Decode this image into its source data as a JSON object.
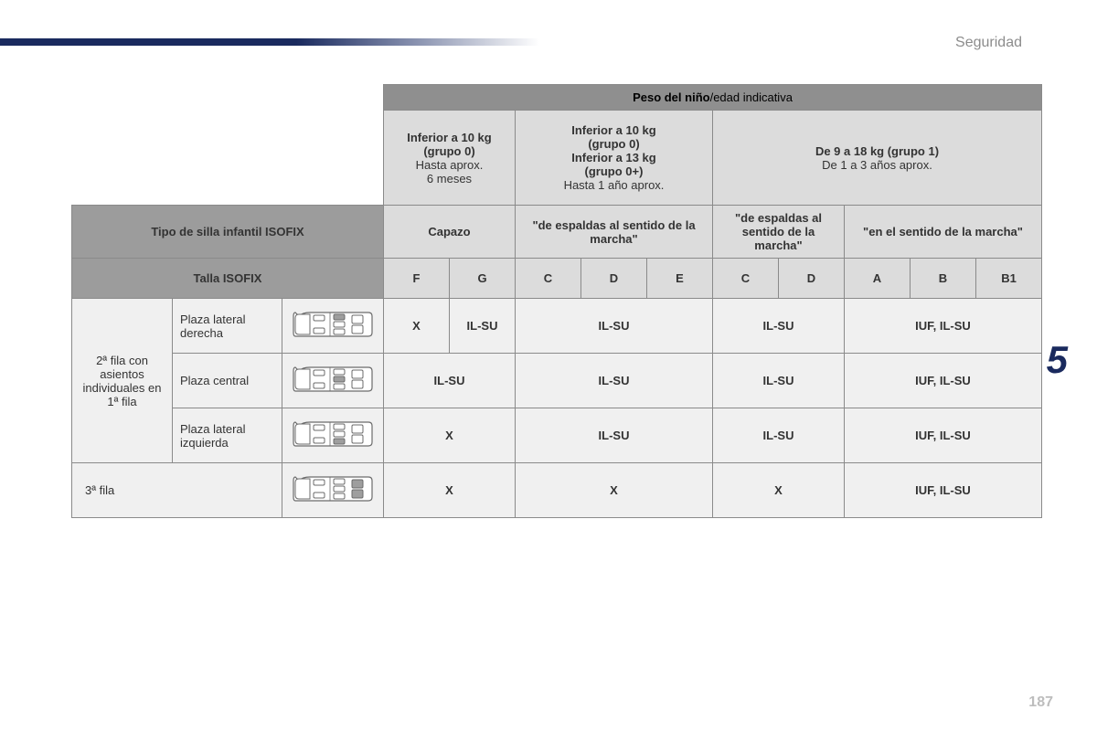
{
  "page": {
    "section_title": "Seguridad",
    "chapter_number": "5",
    "page_number": "187"
  },
  "table": {
    "super_header": {
      "bold": "Peso del niño",
      "light": "/edad indicativa"
    },
    "weight_groups": [
      {
        "line1": "Inferior a 10 kg",
        "line2": "(grupo 0)",
        "line3": "Hasta aprox.",
        "line4": "6 meses"
      },
      {
        "line1": "Inferior a 10 kg",
        "line2": "(grupo 0)",
        "line3": "Inferior a 13 kg",
        "line4": "(grupo 0+)",
        "line5": "Hasta 1 año aprox."
      },
      {
        "line1": "De 9 a 18 kg (grupo 1)",
        "line2": "De 1 a 3 años aprox."
      }
    ],
    "seat_type_label": "Tipo de silla infantil ISOFIX",
    "seat_types": {
      "capazo": "Capazo",
      "rear1": "\"de espaldas al sentido de la marcha\"",
      "rear2": "\"de espaldas al sentido de la marcha\"",
      "forward": "\"en el sentido de la marcha\""
    },
    "size_label": "Talla ISOFIX",
    "sizes": [
      "F",
      "G",
      "C",
      "D",
      "E",
      "C",
      "D",
      "A",
      "B",
      "B1"
    ],
    "row_group_label": "2ª fila con asientos individuales en 1ª fila",
    "rows": [
      {
        "label": "Plaza lateral derecha",
        "seat": "right",
        "vals": {
          "capazo_f": "X",
          "capazo_g": "IL-SU",
          "rear1": "IL-SU",
          "rear2": "IL-SU",
          "fwd": "IUF, IL-SU"
        }
      },
      {
        "label": "Plaza central",
        "seat": "center",
        "vals": {
          "capazo": "IL-SU",
          "rear1": "IL-SU",
          "rear2": "IL-SU",
          "fwd": "IUF, IL-SU"
        }
      },
      {
        "label": "Plaza lateral izquierda",
        "seat": "left",
        "vals": {
          "capazo": "X",
          "rear1": "IL-SU",
          "rear2": "IL-SU",
          "fwd": "IUF, IL-SU"
        }
      }
    ],
    "row3": {
      "label": "3ª fila",
      "seat": "third",
      "vals": {
        "capazo": "X",
        "rear1": "X",
        "rear2": "X",
        "fwd": "IUF, IL-SU"
      }
    }
  },
  "colors": {
    "stripe_dark": "#1a2a5e",
    "header_grey": "#8f8f8f",
    "header_pale": "#dcdcdc",
    "header_mid": "#9c9c9c",
    "body_light": "#f0f0f0",
    "border": "#8a8a8a",
    "text_muted": "#8c8c8c",
    "pagenum": "#bdbdbd"
  }
}
